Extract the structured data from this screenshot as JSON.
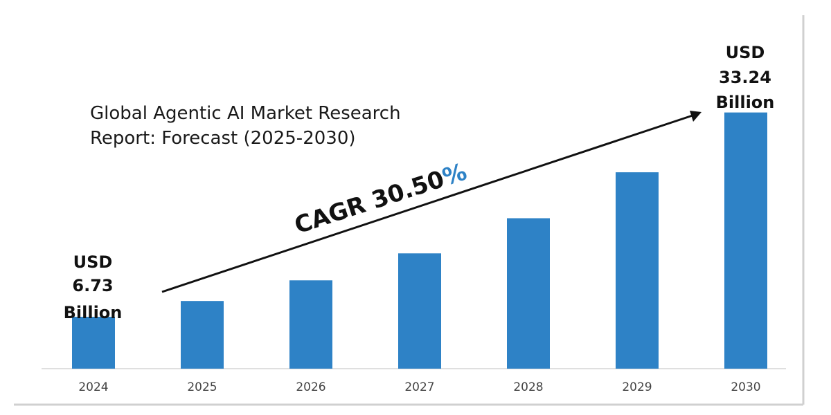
{
  "chart_data": {
    "type": "bar",
    "title": "Global Agentic AI Market Research",
    "subtitle": "Report: Forecast (2025-2030)",
    "categories": [
      "2024",
      "2025",
      "2026",
      "2027",
      "2028",
      "2029",
      "2030"
    ],
    "values": [
      6.73,
      8.78,
      11.46,
      14.96,
      19.52,
      25.48,
      33.24
    ],
    "ylim": [
      0,
      42
    ],
    "grid": false,
    "bar_color": "#2e82c6",
    "callouts": {
      "start": {
        "line1": "USD",
        "line2": "6.73",
        "line3": "Billion"
      },
      "end": {
        "line1": "USD",
        "line2": "33.24",
        "line3": "Billion"
      }
    },
    "cagr": {
      "label": "CAGR 30.50",
      "percent_sign": "%",
      "label_color": "#111111",
      "percent_color": "#2e82c6"
    }
  }
}
